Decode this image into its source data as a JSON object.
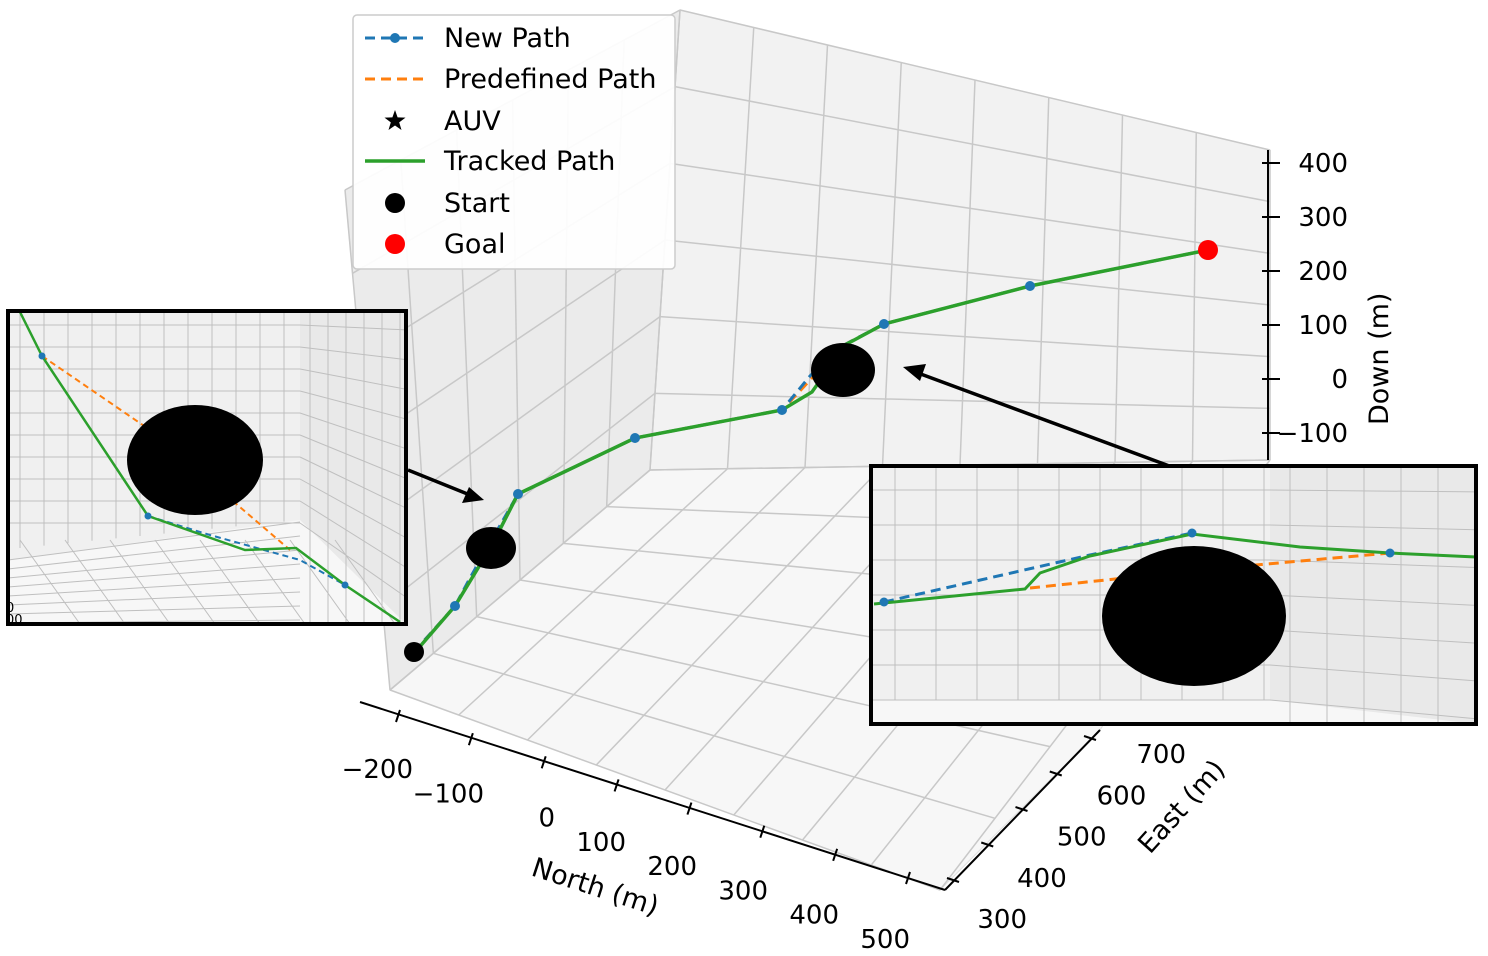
{
  "chart_data": {
    "type": "line",
    "projection": "3d",
    "axes": {
      "north": {
        "label": "North (m)",
        "ticks": [
          -200,
          -100,
          0,
          100,
          200,
          300,
          400,
          500
        ]
      },
      "east": {
        "label": "East (m)",
        "ticks": [
          300,
          400,
          500,
          600,
          700
        ]
      },
      "down": {
        "label": "Down (m)",
        "ticks": [
          -100,
          0,
          100,
          200,
          300,
          400
        ]
      }
    },
    "grid": true,
    "legend_position": "top-left",
    "legend": [
      {
        "key": "new",
        "name": "New Path",
        "color": "#1f77b4",
        "style": "dashed-with-markers"
      },
      {
        "key": "predefined",
        "name": "Predefined Path",
        "color": "#ff7f0e",
        "style": "dashed"
      },
      {
        "key": "auv",
        "name": "AUV",
        "color": "#000000",
        "style": "star-marker"
      },
      {
        "key": "tracked",
        "name": "Tracked Path",
        "color": "#2ca02c",
        "style": "solid"
      },
      {
        "key": "start",
        "name": "Start",
        "color": "#000000",
        "style": "circle-marker"
      },
      {
        "key": "goal",
        "name": "Goal",
        "color": "#ff0000",
        "style": "circle-marker"
      }
    ],
    "obstacles": 2,
    "insets": 2,
    "note_values_estimated": true
  },
  "tick_labels": {
    "north": [
      "−200",
      "−100",
      "0",
      "100",
      "200",
      "300",
      "400",
      "500"
    ],
    "east": [
      "300",
      "400",
      "500",
      "600",
      "700"
    ],
    "down": [
      "400",
      "300",
      "200",
      "100",
      "0",
      "−100"
    ],
    "inset_left_partial": [
      "0",
      "00"
    ]
  }
}
